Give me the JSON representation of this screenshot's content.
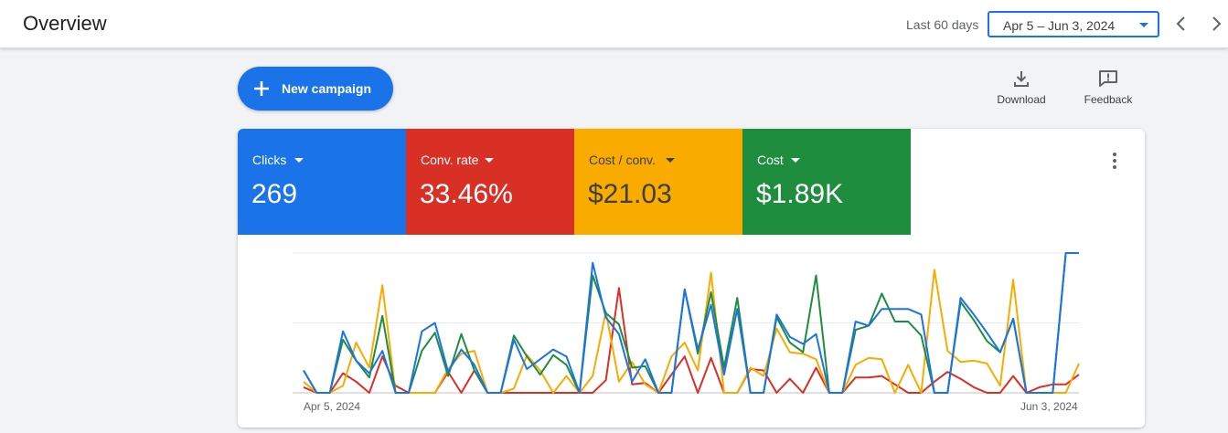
{
  "header": {
    "title": "Overview",
    "range_label": "Last 60 days",
    "date_range": "Apr 5 – Jun 3, 2024"
  },
  "actions": {
    "new_campaign": "New campaign",
    "download": "Download",
    "feedback": "Feedback"
  },
  "metrics": [
    {
      "label": "Clicks",
      "value": "269",
      "color": "#1a73e8"
    },
    {
      "label": "Conv. rate",
      "value": "33.46%",
      "color": "#d93025"
    },
    {
      "label": "Cost / conv.",
      "value": "$21.03",
      "color": "#f9ab00"
    },
    {
      "label": "Cost",
      "value": "$1.89K",
      "color": "#1e8e3e"
    }
  ],
  "chart_data": {
    "type": "line",
    "x_start_label": "Apr 5, 2024",
    "x_end_label": "Jun 3, 2024",
    "x": [
      "Apr 5",
      "Apr 6",
      "Apr 7",
      "Apr 8",
      "Apr 9",
      "Apr 10",
      "Apr 11",
      "Apr 12",
      "Apr 13",
      "Apr 14",
      "Apr 15",
      "Apr 16",
      "Apr 17",
      "Apr 18",
      "Apr 19",
      "Apr 20",
      "Apr 21",
      "Apr 22",
      "Apr 23",
      "Apr 24",
      "Apr 25",
      "Apr 26",
      "Apr 27",
      "Apr 28",
      "Apr 29",
      "Apr 30",
      "May 1",
      "May 2",
      "May 3",
      "May 4",
      "May 5",
      "May 6",
      "May 7",
      "May 8",
      "May 9",
      "May 10",
      "May 11",
      "May 12",
      "May 13",
      "May 14",
      "May 15",
      "May 16",
      "May 17",
      "May 18",
      "May 19",
      "May 20",
      "May 21",
      "May 22",
      "May 23",
      "May 24",
      "May 25",
      "May 26",
      "May 27",
      "May 28",
      "May 29",
      "May 30",
      "May 31",
      "Jun 1",
      "Jun 2",
      "Jun 3"
    ],
    "y_axis": {
      "gridlines": 3,
      "labels_shown": false
    },
    "series": [
      {
        "key": "clicks",
        "color": "#1a73e8",
        "values": [
          0.16,
          0,
          0,
          0.44,
          0.23,
          0.14,
          0.3,
          0,
          0,
          0.44,
          0.5,
          0.15,
          0.31,
          0.2,
          0,
          0,
          0.38,
          0.17,
          0.24,
          0.31,
          0.26,
          0,
          0.93,
          0.54,
          0.42,
          0.08,
          0.24,
          0,
          0,
          0.74,
          0.31,
          0.63,
          0.13,
          0.6,
          0,
          0,
          0.56,
          0.4,
          0.35,
          0.42,
          0,
          0,
          0.51,
          0.48,
          0.6,
          0.6,
          0.6,
          0.56,
          0,
          0,
          0.68,
          0.56,
          0.43,
          0.29,
          0.53,
          0,
          0,
          0,
          1.0,
          1.0
        ]
      },
      {
        "key": "conv_rate",
        "color": "#d93025",
        "values": [
          0.04,
          0,
          0,
          0.14,
          0.08,
          0,
          0.26,
          0.05,
          0,
          0,
          0,
          0.15,
          0,
          0.16,
          0,
          0,
          0,
          0,
          0,
          0,
          0,
          0,
          0,
          0.09,
          0.75,
          0.06,
          0.07,
          0,
          0.13,
          0.26,
          0,
          0.25,
          0,
          0,
          0.17,
          0.16,
          0,
          0.1,
          0,
          0.18,
          0,
          0,
          0.11,
          0.11,
          0.12,
          0.06,
          0,
          0,
          0.08,
          0.15,
          0.1,
          0.04,
          0,
          0,
          0.12,
          0,
          0.04,
          0.06,
          0.06,
          0.13
        ]
      },
      {
        "key": "cost_per_conv",
        "color": "#f9ab00",
        "values": [
          0.08,
          0,
          0,
          0.05,
          0.36,
          0.18,
          0.77,
          0,
          0,
          0,
          0,
          0.17,
          0.28,
          0.3,
          0,
          0,
          0.03,
          0.27,
          0.16,
          0,
          0.12,
          0,
          0.12,
          0.58,
          0.08,
          0.22,
          0.06,
          0,
          0.26,
          0.36,
          0.16,
          0.86,
          0,
          0,
          0.18,
          0.12,
          0.46,
          0.29,
          0.28,
          0.24,
          0,
          0,
          0.2,
          0.25,
          0.24,
          0,
          0.2,
          0,
          0.88,
          0.3,
          0.22,
          0.23,
          0.21,
          0.05,
          0.81,
          0,
          0,
          0,
          0,
          0.21
        ]
      },
      {
        "key": "cost",
        "color": "#1e8e3e",
        "values": [
          0.16,
          0,
          0,
          0.38,
          0.23,
          0.11,
          0.55,
          0,
          0,
          0.3,
          0.43,
          0.12,
          0.42,
          0.16,
          0,
          0,
          0.41,
          0.26,
          0.13,
          0.27,
          0.2,
          0,
          0.84,
          0.57,
          0.49,
          0.18,
          0.19,
          0,
          0,
          0.74,
          0.28,
          0.72,
          0.18,
          0.68,
          0,
          0,
          0.54,
          0.36,
          0.29,
          0.84,
          0,
          0,
          0.45,
          0.48,
          0.71,
          0.51,
          0.51,
          0.41,
          0,
          0,
          0.65,
          0.52,
          0.37,
          0.29,
          0.53,
          0,
          0,
          0,
          1.0,
          1.0
        ]
      }
    ]
  }
}
